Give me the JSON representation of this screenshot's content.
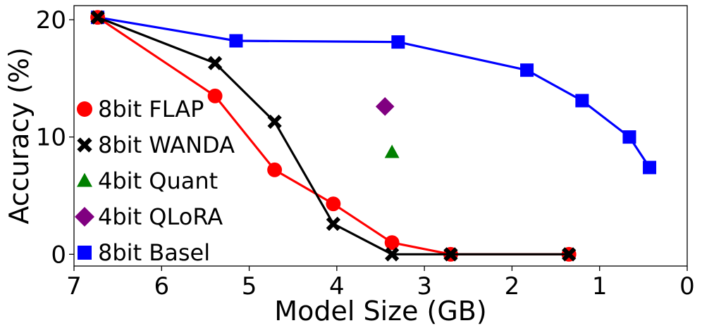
{
  "chart_data": {
    "type": "line",
    "title": "",
    "xlabel": "Model Size (GB)",
    "ylabel": "Accuracy (%)",
    "xlim": [
      7,
      0
    ],
    "ylim": [
      -1,
      21.2
    ],
    "xticks": [
      7,
      6,
      5,
      4,
      3,
      2,
      1,
      0
    ],
    "yticks": [
      0,
      10,
      20
    ],
    "grid": false,
    "legend_position": "left",
    "series": [
      {
        "name": "8bit FLAP",
        "color": "#ff0000",
        "marker": "circle",
        "line": true,
        "x": [
          6.73,
          5.39,
          4.71,
          4.04,
          3.37,
          2.7,
          1.35
        ],
        "y": [
          20.2,
          13.5,
          7.2,
          4.3,
          1.0,
          0.0,
          0.0
        ]
      },
      {
        "name": "8bit WANDA",
        "color": "#000000",
        "marker": "x",
        "line": true,
        "x": [
          6.73,
          5.39,
          4.71,
          4.04,
          3.37,
          2.7,
          1.35
        ],
        "y": [
          20.2,
          16.3,
          11.3,
          2.6,
          0.0,
          0.0,
          0.0
        ]
      },
      {
        "name": "4bit Quant",
        "color": "#008000",
        "marker": "triangle",
        "line": false,
        "x": [
          3.37
        ],
        "y": [
          8.7
        ]
      },
      {
        "name": "4bit QLoRA",
        "color": "#800080",
        "marker": "diamond",
        "line": false,
        "x": [
          3.45
        ],
        "y": [
          12.6
        ]
      },
      {
        "name": "8bit Basel",
        "color": "#0000ff",
        "marker": "square",
        "line": true,
        "x": [
          6.73,
          5.15,
          3.3,
          1.83,
          1.2,
          0.66,
          0.43
        ],
        "y": [
          20.2,
          18.2,
          18.1,
          15.7,
          13.1,
          10.0,
          7.4
        ]
      }
    ]
  }
}
